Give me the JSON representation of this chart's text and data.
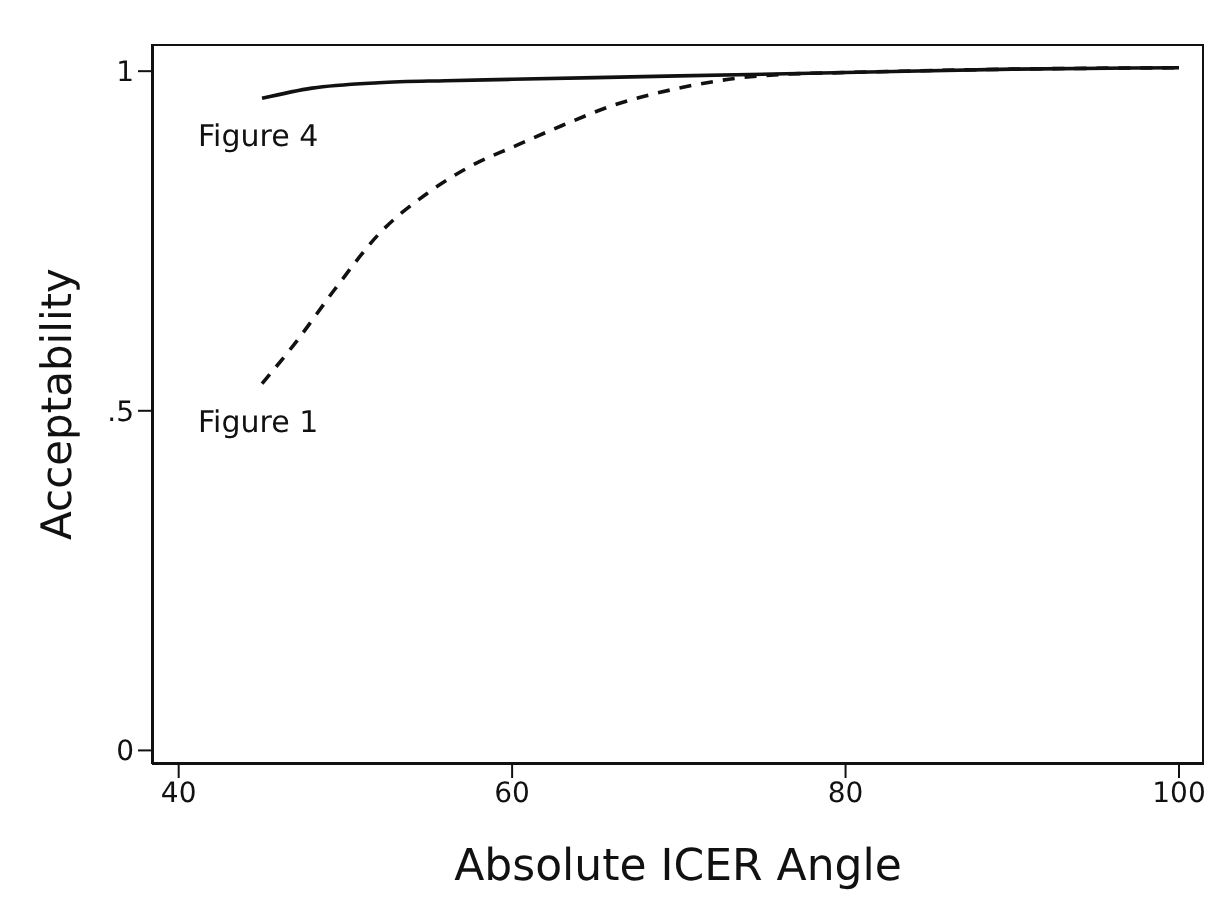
{
  "chart_data": {
    "type": "line",
    "xlabel": "Absolute ICER Angle",
    "ylabel": "Acceptability",
    "xlim": [
      38.4,
      101.5
    ],
    "xticks": [
      40,
      60,
      80,
      100
    ],
    "ylim": [
      -0.02,
      1.04
    ],
    "yticks": [
      0,
      {
        "value": 0.5,
        "label": ".5"
      },
      1
    ],
    "grid": false,
    "legend": false,
    "marker": "none",
    "series": [
      {
        "name": "Figure 4",
        "color": "#111111",
        "line_style": "solid",
        "x": [
          45,
          48,
          52,
          56,
          60,
          70,
          80,
          90,
          100
        ],
        "values": [
          0.96,
          0.975,
          0.983,
          0.986,
          0.988,
          0.993,
          0.998,
          1.003,
          1.005
        ]
      },
      {
        "name": "Figure 1",
        "color": "#111111",
        "line_style": "dashed",
        "x": [
          45,
          47,
          49.4,
          52,
          54.9,
          57.5,
          60.2,
          63,
          66.1,
          70,
          73.6,
          76,
          80,
          90,
          100
        ],
        "values": [
          0.54,
          0.6,
          0.68,
          0.76,
          0.82,
          0.86,
          0.89,
          0.92,
          0.95,
          0.975,
          0.99,
          0.995,
          0.998,
          1.003,
          1.005
        ]
      }
    ]
  }
}
